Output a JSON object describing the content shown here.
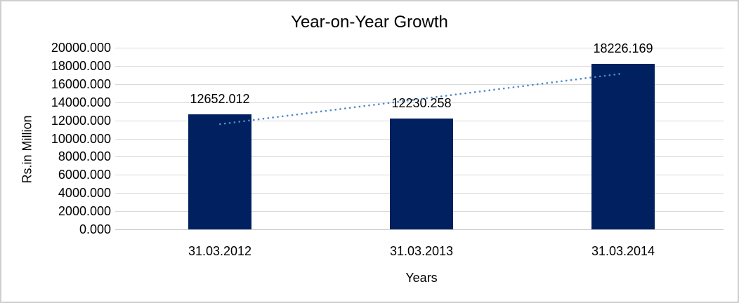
{
  "chart_data": {
    "type": "bar",
    "title": "Year-on-Year Growth",
    "xlabel": "Years",
    "ylabel": "Rs.in Million",
    "categories": [
      "31.03.2012",
      "31.03.2013",
      "31.03.2014"
    ],
    "values": [
      12652.012,
      12230.258,
      18226.169
    ],
    "data_labels": [
      "12652.012",
      "12230.258",
      "18226.169"
    ],
    "ylim": [
      0,
      20000
    ],
    "ytick_step": 2000,
    "ytick_labels": [
      "0.000",
      "2000.000",
      "4000.000",
      "6000.000",
      "8000.000",
      "10000.000",
      "12000.000",
      "14000.000",
      "16000.000",
      "18000.000",
      "20000.000"
    ],
    "grid": true,
    "legend": "none",
    "trendline": {
      "type": "linear",
      "style": "dotted"
    }
  },
  "colors": {
    "bar": "#002060",
    "trendline": "#5189c8",
    "gridline": "#d9d9d9",
    "axis_line": "#c6c6c6",
    "text": "#000000",
    "frame_border": "#cfcfcf",
    "background": "#ffffff"
  }
}
